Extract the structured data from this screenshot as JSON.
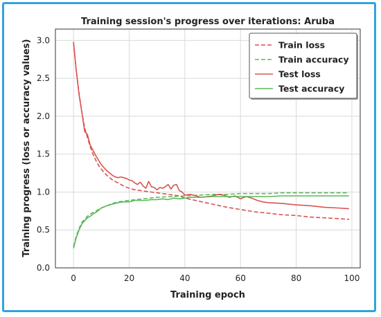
{
  "chart_data": {
    "type": "line",
    "title": "Training session's progress over iterations: Aruba",
    "xlabel": "Training epoch",
    "ylabel": "Training progress (loss or accuracy values)",
    "xlim": [
      -6.5,
      103
    ],
    "ylim": [
      0.0,
      3.15
    ],
    "xticks": [
      0,
      20,
      40,
      60,
      80,
      100
    ],
    "yticks": [
      0.0,
      0.5,
      1.0,
      1.5,
      2.0,
      2.5,
      3.0
    ],
    "xtick_labels": [
      "0",
      "20",
      "40",
      "60",
      "80",
      "100"
    ],
    "ytick_labels": [
      "0.0",
      "0.5",
      "1.0",
      "1.5",
      "2.0",
      "2.5",
      "3.0"
    ],
    "grid": true,
    "legend_position": "top-right",
    "series": [
      {
        "name": "Train loss",
        "color": "#d9534f",
        "style": "dashed",
        "x": [
          0,
          1,
          2,
          3,
          4,
          5,
          6,
          7,
          8,
          9,
          10,
          12,
          14,
          16,
          18,
          20,
          22,
          24,
          26,
          28,
          30,
          32,
          34,
          36,
          38,
          40,
          45,
          50,
          55,
          60,
          65,
          70,
          75,
          80,
          85,
          90,
          95,
          99
        ],
        "y": [
          2.98,
          2.6,
          2.3,
          2.05,
          1.85,
          1.72,
          1.6,
          1.5,
          1.42,
          1.35,
          1.3,
          1.22,
          1.16,
          1.12,
          1.08,
          1.05,
          1.03,
          1.02,
          1.01,
          1.0,
          0.99,
          0.98,
          0.97,
          0.96,
          0.95,
          0.92,
          0.88,
          0.84,
          0.8,
          0.77,
          0.74,
          0.72,
          0.7,
          0.69,
          0.67,
          0.66,
          0.65,
          0.64
        ]
      },
      {
        "name": "Train accuracy",
        "color": "#5cb85c",
        "style": "dashed",
        "x": [
          0,
          1,
          2,
          3,
          4,
          5,
          6,
          8,
          10,
          12,
          14,
          16,
          18,
          20,
          25,
          30,
          35,
          40,
          45,
          50,
          55,
          60,
          65,
          70,
          75,
          80,
          85,
          90,
          95,
          99
        ],
        "y": [
          0.28,
          0.42,
          0.52,
          0.6,
          0.64,
          0.68,
          0.71,
          0.75,
          0.79,
          0.82,
          0.85,
          0.87,
          0.88,
          0.89,
          0.91,
          0.93,
          0.94,
          0.95,
          0.96,
          0.97,
          0.97,
          0.98,
          0.98,
          0.98,
          0.99,
          0.99,
          0.99,
          0.99,
          0.99,
          0.99
        ]
      },
      {
        "name": "Test loss",
        "color": "#d9534f",
        "style": "solid",
        "x": [
          0,
          1,
          2,
          3,
          4,
          5,
          6,
          7,
          8,
          9,
          10,
          11,
          12,
          13,
          14,
          15,
          16,
          17,
          18,
          19,
          20,
          21,
          22,
          23,
          24,
          25,
          26,
          27,
          28,
          29,
          30,
          31,
          32,
          33,
          34,
          35,
          36,
          37,
          38,
          39,
          40,
          42,
          44,
          46,
          48,
          50,
          52,
          54,
          56,
          58,
          60,
          62,
          64,
          66,
          68,
          70,
          75,
          80,
          85,
          90,
          95,
          99
        ],
        "y": [
          2.98,
          2.6,
          2.28,
          2.05,
          1.8,
          1.76,
          1.62,
          1.55,
          1.48,
          1.42,
          1.36,
          1.32,
          1.28,
          1.25,
          1.22,
          1.2,
          1.19,
          1.2,
          1.19,
          1.18,
          1.16,
          1.15,
          1.12,
          1.1,
          1.13,
          1.08,
          1.05,
          1.14,
          1.07,
          1.06,
          1.03,
          1.06,
          1.05,
          1.07,
          1.1,
          1.04,
          1.09,
          1.1,
          1.02,
          1.0,
          0.96,
          0.97,
          0.95,
          0.93,
          0.94,
          0.95,
          0.97,
          0.96,
          0.93,
          0.95,
          0.91,
          0.94,
          0.92,
          0.89,
          0.87,
          0.86,
          0.85,
          0.83,
          0.82,
          0.8,
          0.79,
          0.78
        ]
      },
      {
        "name": "Test accuracy",
        "color": "#5cb85c",
        "style": "solid",
        "x": [
          0,
          1,
          2,
          3,
          4,
          5,
          6,
          7,
          8,
          9,
          10,
          12,
          14,
          16,
          18,
          20,
          22,
          24,
          26,
          28,
          30,
          32,
          34,
          36,
          38,
          40,
          42,
          45,
          50,
          55,
          60,
          65,
          70,
          75,
          80,
          85,
          90,
          95,
          99
        ],
        "y": [
          0.26,
          0.4,
          0.5,
          0.58,
          0.62,
          0.66,
          0.68,
          0.71,
          0.73,
          0.76,
          0.79,
          0.82,
          0.84,
          0.86,
          0.87,
          0.87,
          0.89,
          0.89,
          0.89,
          0.9,
          0.9,
          0.91,
          0.9,
          0.92,
          0.91,
          0.92,
          0.93,
          0.93,
          0.94,
          0.94,
          0.94,
          0.94,
          0.94,
          0.95,
          0.95,
          0.95,
          0.95,
          0.95,
          0.95
        ]
      }
    ]
  }
}
